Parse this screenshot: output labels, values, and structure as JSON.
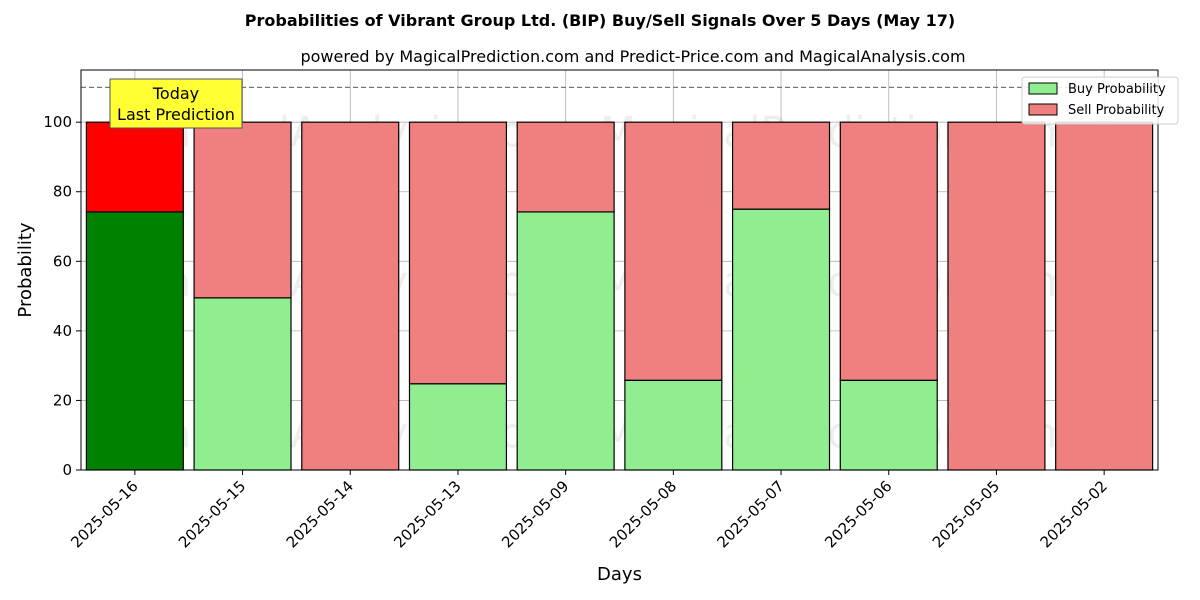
{
  "chart_data": {
    "type": "bar",
    "stacked": true,
    "title": "Probabilities of Vibrant Group Ltd. (BIP) Buy/Sell Signals Over 5 Days (May 17)",
    "subtitle": "powered by MagicalPrediction.com and Predict-Price.com and MagicalAnalysis.com",
    "xlabel": "Days",
    "ylabel": "Probability",
    "ylim": [
      0,
      115
    ],
    "yticks": [
      0,
      20,
      40,
      60,
      80,
      100
    ],
    "reference_line": 110,
    "grid": true,
    "legend_position": "top-right",
    "categories": [
      "2025-05-16",
      "2025-05-15",
      "2025-05-14",
      "2025-05-13",
      "2025-05-09",
      "2025-05-08",
      "2025-05-07",
      "2025-05-06",
      "2025-05-05",
      "2025-05-02"
    ],
    "series": [
      {
        "name": "Buy Probability",
        "values": [
          74.2,
          49.5,
          0,
          24.8,
          74.2,
          25.8,
          75.0,
          25.8,
          0,
          0
        ]
      },
      {
        "name": "Sell Probability",
        "values": [
          25.8,
          50.5,
          100,
          75.2,
          25.8,
          74.2,
          25.0,
          74.2,
          100,
          100
        ]
      }
    ],
    "colors": {
      "buy": "#90ee90",
      "sell": "#f08080",
      "buy_today": "#008000",
      "sell_today": "#ff0000",
      "annotation_bg": "#ffff33"
    },
    "annotation": {
      "line1": "Today",
      "line2": "Last Prediction",
      "category_index": 0
    },
    "watermarks": [
      "MagicalAnalysis.com",
      "MagicalPrediction.com"
    ]
  }
}
